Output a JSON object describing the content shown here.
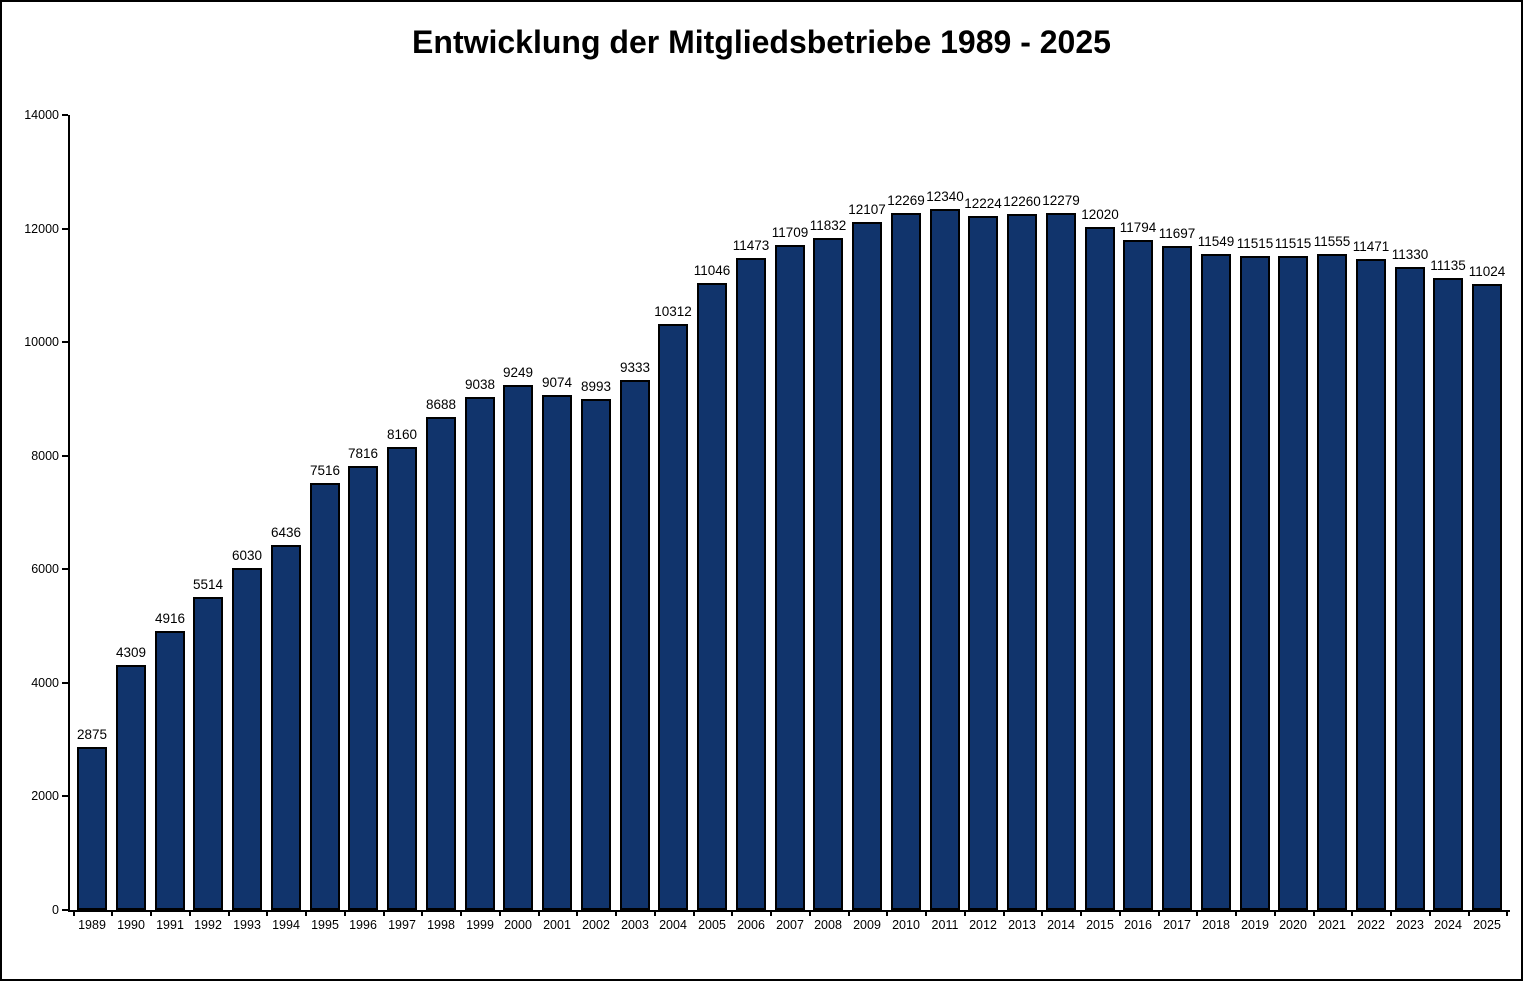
{
  "frame": {
    "background": "#ffffff",
    "border_color": "#000000"
  },
  "chart_data": {
    "type": "bar",
    "title": "Entwicklung der Mitgliedsbetriebe 1989 - 2025",
    "categories": [
      "1989",
      "1990",
      "1991",
      "1992",
      "1993",
      "1994",
      "1995",
      "1996",
      "1997",
      "1998",
      "1999",
      "2000",
      "2001",
      "2002",
      "2003",
      "2004",
      "2005",
      "2006",
      "2007",
      "2008",
      "2009",
      "2010",
      "2011",
      "2012",
      "2013",
      "2014",
      "2015",
      "2016",
      "2017",
      "2018",
      "2019",
      "2020",
      "2021",
      "2022",
      "2023",
      "2024",
      "2025"
    ],
    "values": [
      2875,
      4309,
      4916,
      5514,
      6030,
      6436,
      7516,
      7816,
      8160,
      8688,
      9038,
      9249,
      9074,
      8993,
      9333,
      10312,
      11046,
      11473,
      11709,
      11832,
      12107,
      12269,
      12340,
      12224,
      12260,
      12279,
      12020,
      11794,
      11697,
      11549,
      11515,
      11515,
      11555,
      11471,
      11330,
      11135,
      11024
    ],
    "xlabel": "",
    "ylabel": "",
    "ylim": [
      0,
      14000
    ],
    "ytick_step": 2000,
    "yticks": [
      0,
      2000,
      4000,
      6000,
      8000,
      10000,
      12000,
      14000
    ],
    "bar_color": "#11346C",
    "bar_border_color": "#000000",
    "label_color": "#000000",
    "grid": false,
    "legend": "none",
    "data_labels": true
  }
}
